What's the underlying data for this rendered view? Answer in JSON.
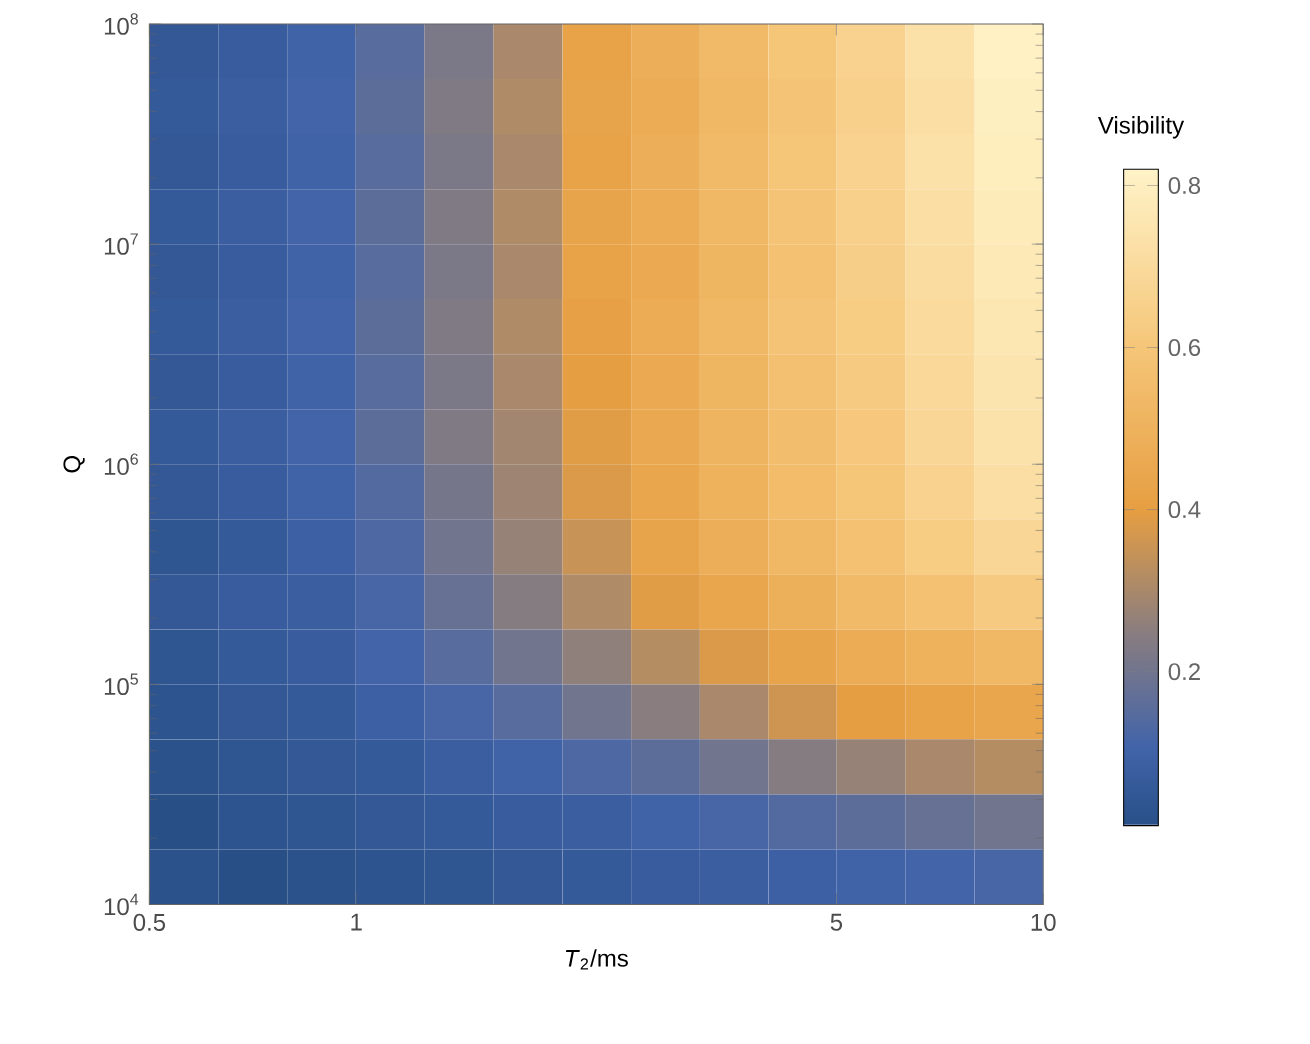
{
  "chart_data": {
    "type": "heatmap",
    "xlabel": "*T*$_{2}$/ms",
    "ylabel": "Q",
    "clabel": "Visibility",
    "log": "xy",
    "xlim": [
      0.5,
      10
    ],
    "ylim": [
      10000,
      100000000
    ],
    "xticks": [
      0.5,
      1,
      5,
      10
    ],
    "yticks": [
      {
        "value": 10000,
        "label": "10$^{4}$"
      },
      {
        "value": 100000,
        "label": "10$^{5}$"
      },
      {
        "value": 1000000,
        "label": "10$^{6}$"
      },
      {
        "value": 10000000,
        "label": "10$^{7}$"
      },
      {
        "value": 100000000,
        "label": "10$^{8}$"
      }
    ],
    "clim": [
      0.01,
      0.82
    ],
    "cticks": [
      0.2,
      0.4,
      0.6,
      0.8
    ],
    "x": [
      0.56,
      0.71,
      0.89,
      1.12,
      1.41,
      1.78,
      2.24,
      2.82,
      3.55,
      4.47,
      5.6,
      7.1,
      8.9
    ],
    "y": [
      75000000,
      42200000,
      23700000,
      13300000,
      7500000,
      4220000,
      2370000,
      1330000,
      750000,
      422000,
      237000,
      133000,
      75000,
      42200,
      23700,
      13300
    ],
    "cells": [
      [
        0.05,
        0.07,
        0.1,
        0.15,
        0.22,
        0.3,
        0.42,
        0.48,
        0.54,
        0.6,
        0.66,
        0.73,
        0.81
      ],
      [
        0.06,
        0.08,
        0.11,
        0.16,
        0.23,
        0.31,
        0.43,
        0.47,
        0.53,
        0.59,
        0.65,
        0.72,
        0.8
      ],
      [
        0.05,
        0.07,
        0.1,
        0.15,
        0.22,
        0.3,
        0.42,
        0.48,
        0.54,
        0.6,
        0.66,
        0.73,
        0.79
      ],
      [
        0.06,
        0.08,
        0.11,
        0.16,
        0.23,
        0.31,
        0.43,
        0.47,
        0.53,
        0.59,
        0.65,
        0.72,
        0.78
      ],
      [
        0.05,
        0.07,
        0.1,
        0.15,
        0.22,
        0.3,
        0.42,
        0.46,
        0.52,
        0.58,
        0.64,
        0.71,
        0.77
      ],
      [
        0.06,
        0.08,
        0.11,
        0.16,
        0.23,
        0.31,
        0.41,
        0.47,
        0.53,
        0.59,
        0.63,
        0.7,
        0.76
      ],
      [
        0.05,
        0.07,
        0.1,
        0.15,
        0.22,
        0.3,
        0.4,
        0.46,
        0.52,
        0.57,
        0.62,
        0.69,
        0.75
      ],
      [
        0.06,
        0.08,
        0.11,
        0.16,
        0.23,
        0.29,
        0.39,
        0.45,
        0.51,
        0.56,
        0.61,
        0.68,
        0.74
      ],
      [
        0.05,
        0.07,
        0.1,
        0.14,
        0.21,
        0.28,
        0.38,
        0.44,
        0.5,
        0.55,
        0.6,
        0.66,
        0.72
      ],
      [
        0.04,
        0.06,
        0.09,
        0.13,
        0.2,
        0.27,
        0.35,
        0.43,
        0.48,
        0.53,
        0.58,
        0.63,
        0.68
      ],
      [
        0.05,
        0.07,
        0.08,
        0.12,
        0.18,
        0.24,
        0.31,
        0.39,
        0.44,
        0.49,
        0.54,
        0.58,
        0.62
      ],
      [
        0.04,
        0.06,
        0.07,
        0.11,
        0.15,
        0.2,
        0.26,
        0.32,
        0.38,
        0.43,
        0.47,
        0.5,
        0.53
      ],
      [
        0.03,
        0.05,
        0.06,
        0.09,
        0.12,
        0.15,
        0.2,
        0.25,
        0.3,
        0.36,
        0.4,
        0.42,
        0.44
      ],
      [
        0.02,
        0.04,
        0.05,
        0.06,
        0.08,
        0.1,
        0.13,
        0.16,
        0.2,
        0.24,
        0.27,
        0.3,
        0.32
      ],
      [
        0.01,
        0.03,
        0.04,
        0.05,
        0.06,
        0.07,
        0.08,
        0.1,
        0.12,
        0.14,
        0.16,
        0.18,
        0.2
      ],
      [
        0.02,
        0.01,
        0.02,
        0.03,
        0.04,
        0.05,
        0.06,
        0.07,
        0.08,
        0.09,
        0.1,
        0.11,
        0.12
      ]
    ]
  }
}
